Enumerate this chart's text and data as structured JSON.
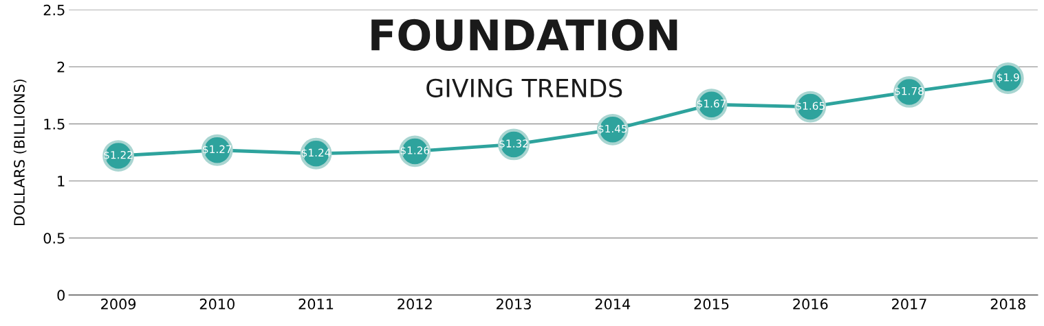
{
  "chart_data": {
    "type": "line",
    "title": "FOUNDATION",
    "subtitle": "GIVING TRENDS",
    "ylabel": "DOLLARS (BILLIONS)",
    "categories": [
      "2009",
      "2010",
      "2011",
      "2012",
      "2013",
      "2014",
      "2015",
      "2016",
      "2017",
      "2018"
    ],
    "series": [
      {
        "color": "#2ea39d",
        "values": [
          1.22,
          1.27,
          1.24,
          1.26,
          1.32,
          1.45,
          1.67,
          1.65,
          1.78,
          1.9
        ],
        "value_labels": [
          "$1.22",
          "$1.27",
          "$1.24",
          "$1.26",
          "$1.32",
          "$1.45",
          "$1.67",
          "$1.65",
          "$1.78",
          "$1.9"
        ]
      }
    ],
    "ylim": [
      0,
      2.5
    ],
    "yticks": [
      0,
      0.5,
      1,
      1.5,
      2,
      2.5
    ],
    "grid": "y",
    "legend": false,
    "marker": "circle",
    "line_style": "solid"
  }
}
